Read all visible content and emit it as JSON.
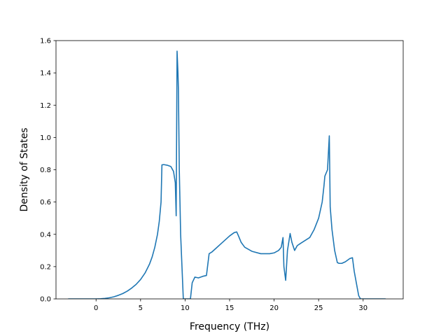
{
  "chart_data": {
    "type": "line",
    "title": "",
    "xlabel": "Frequency (THz)",
    "ylabel": "Density of States",
    "xlim": [
      -4.5,
      34.5
    ],
    "ylim": [
      0.0,
      1.6
    ],
    "xticks": [
      0,
      5,
      10,
      15,
      20,
      25,
      30
    ],
    "xtick_labels": [
      "0",
      "5",
      "10",
      "15",
      "20",
      "25",
      "30"
    ],
    "yticks": [
      0.0,
      0.2,
      0.4,
      0.6,
      0.8,
      1.0,
      1.2,
      1.4,
      1.6
    ],
    "ytick_labels": [
      "0.0",
      "0.2",
      "0.4",
      "0.6",
      "0.8",
      "1.0",
      "1.2",
      "1.4",
      "1.6"
    ],
    "grid": false,
    "legend": "none",
    "series": [
      {
        "color": "#1f77b4",
        "x": [
          -3.1,
          -2,
          -1,
          0,
          0.5,
          1,
          1.5,
          2,
          2.5,
          3,
          3.5,
          4,
          4.5,
          5,
          5.5,
          6,
          6.3,
          6.6,
          6.9,
          7.1,
          7.3,
          7.4,
          7.6,
          8.0,
          8.4,
          8.7,
          8.9,
          9.0,
          9.1,
          9.2,
          9.25,
          9.35,
          9.5,
          9.8,
          10.0,
          10.3,
          10.6,
          10.8,
          11.1,
          11.5,
          12.0,
          12.4,
          12.7,
          13.0,
          13.5,
          14.0,
          14.5,
          15.0,
          15.5,
          15.8,
          16.0,
          16.3,
          16.7,
          17.5,
          18.5,
          19.5,
          20.0,
          20.5,
          20.8,
          21.0,
          21.1,
          21.3,
          21.5,
          21.8,
          22.0,
          22.3,
          22.6,
          23.0,
          24.0,
          24.5,
          25.0,
          25.4,
          25.6,
          25.7,
          26.0,
          26.2,
          26.3,
          26.5,
          26.8,
          27.1,
          27.3,
          27.6,
          28.0,
          28.5,
          28.8,
          29.0,
          29.5,
          29.7,
          32.5
        ],
        "values": [
          0.0,
          0.0,
          0.0,
          0.0,
          0.001,
          0.003,
          0.007,
          0.013,
          0.022,
          0.033,
          0.048,
          0.067,
          0.09,
          0.12,
          0.16,
          0.215,
          0.26,
          0.32,
          0.4,
          0.48,
          0.6,
          0.83,
          0.832,
          0.828,
          0.82,
          0.79,
          0.72,
          0.515,
          1.535,
          1.4,
          1.3,
          0.8,
          0.4,
          0.0,
          0.0,
          0.0,
          0.0,
          0.1,
          0.135,
          0.13,
          0.14,
          0.145,
          0.28,
          0.29,
          0.315,
          0.34,
          0.365,
          0.39,
          0.41,
          0.415,
          0.39,
          0.35,
          0.32,
          0.295,
          0.28,
          0.28,
          0.285,
          0.3,
          0.32,
          0.38,
          0.2,
          0.115,
          0.3,
          0.405,
          0.35,
          0.3,
          0.33,
          0.345,
          0.38,
          0.43,
          0.5,
          0.6,
          0.7,
          0.76,
          0.8,
          1.01,
          0.57,
          0.43,
          0.3,
          0.225,
          0.22,
          0.22,
          0.23,
          0.25,
          0.255,
          0.17,
          0.02,
          0.0,
          0.0
        ]
      }
    ]
  }
}
